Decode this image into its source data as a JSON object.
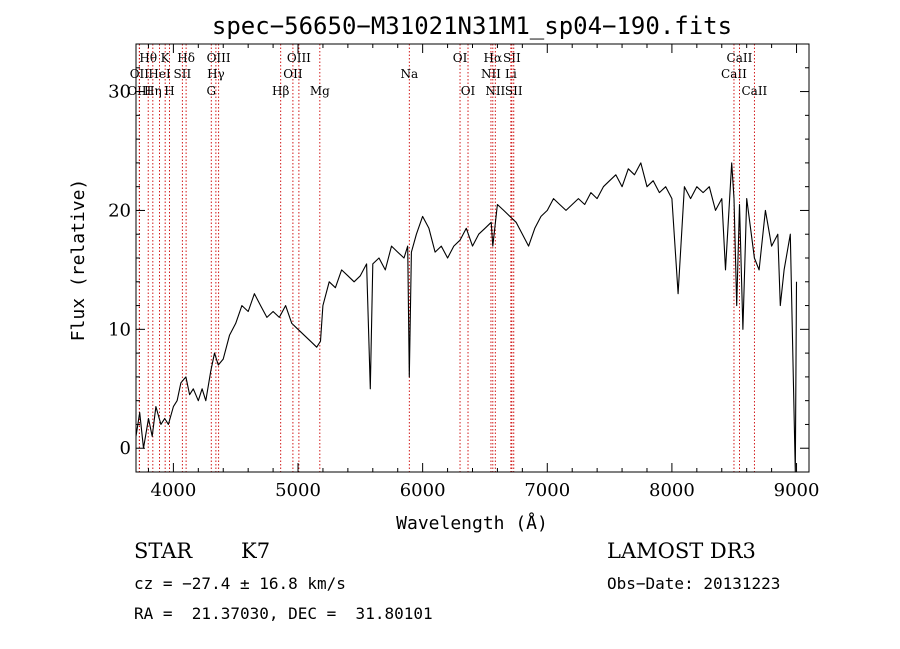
{
  "chart_data": {
    "type": "line",
    "title": "spec−56650−M31021N31M1_sp04−190.fits",
    "xlabel": "Wavelength (Å)",
    "ylabel": "Flux (relative)",
    "xlim": [
      3700,
      9100
    ],
    "ylim": [
      -2,
      34
    ],
    "xticks": [
      4000,
      5000,
      6000,
      7000,
      8000,
      9000
    ],
    "yticks": [
      0,
      10,
      20,
      30
    ],
    "grid": false,
    "line_color": "#000000",
    "marker_color": "#cc0000",
    "series": [
      {
        "x": [
          3700,
          3730,
          3760,
          3800,
          3830,
          3860,
          3900,
          3930,
          3960,
          4000,
          4030,
          4060,
          4100,
          4130,
          4160,
          4200,
          4230,
          4260,
          4300,
          4330,
          4360,
          4400,
          4450,
          4500,
          4550,
          4600,
          4650,
          4700,
          4750,
          4800,
          4850,
          4900,
          4950,
          5000,
          5050,
          5100,
          5150,
          5180,
          5200,
          5250,
          5300,
          5350,
          5400,
          5450,
          5500,
          5550,
          5580,
          5600,
          5650,
          5700,
          5750,
          5800,
          5850,
          5880,
          5893,
          5910,
          5950,
          6000,
          6050,
          6100,
          6150,
          6200,
          6250,
          6300,
          6350,
          6400,
          6450,
          6500,
          6550,
          6563,
          6600,
          6650,
          6700,
          6750,
          6800,
          6850,
          6900,
          6950,
          7000,
          7050,
          7100,
          7150,
          7200,
          7250,
          7300,
          7350,
          7400,
          7450,
          7500,
          7550,
          7600,
          7650,
          7700,
          7750,
          7800,
          7850,
          7900,
          7950,
          8000,
          8050,
          8100,
          8150,
          8200,
          8250,
          8300,
          8350,
          8400,
          8430,
          8480,
          8498,
          8520,
          8542,
          8570,
          8600,
          8662,
          8700,
          8750,
          8800,
          8850,
          8870,
          8900,
          8950,
          8990,
          9000
        ],
        "y": [
          1.0,
          3.0,
          0.0,
          2.5,
          1.0,
          3.5,
          2.0,
          2.5,
          2.0,
          3.5,
          4.0,
          5.5,
          6.0,
          4.5,
          5.0,
          4.0,
          5.0,
          4.0,
          6.5,
          8.0,
          7.0,
          7.5,
          9.5,
          10.5,
          12.0,
          11.5,
          13.0,
          12.0,
          11.0,
          11.5,
          11.0,
          12.0,
          10.5,
          10.0,
          9.5,
          9.0,
          8.5,
          9.0,
          12.0,
          14.0,
          13.5,
          15.0,
          14.5,
          14.0,
          14.5,
          15.5,
          5.0,
          15.5,
          16.0,
          15.0,
          17.0,
          16.5,
          16.0,
          17.0,
          6.0,
          16.5,
          18.0,
          19.5,
          18.5,
          16.5,
          17.0,
          16.0,
          17.0,
          17.5,
          18.5,
          17.0,
          18.0,
          18.5,
          19.0,
          17.0,
          20.5,
          20.0,
          19.5,
          19.0,
          18.0,
          17.0,
          18.5,
          19.5,
          20.0,
          21.0,
          20.5,
          20.0,
          20.5,
          21.0,
          20.5,
          21.5,
          21.0,
          22.0,
          22.5,
          23.0,
          22.0,
          23.5,
          23.0,
          24.0,
          22.0,
          22.5,
          21.5,
          22.0,
          21.0,
          13.0,
          22.0,
          21.0,
          22.0,
          21.5,
          22.0,
          20.0,
          21.0,
          15.0,
          24.0,
          21.0,
          12.0,
          20.5,
          10.0,
          21.0,
          16.0,
          15.0,
          20.0,
          17.0,
          18.0,
          12.0,
          15.0,
          18.0,
          -2.0,
          14.0
        ]
      }
    ],
    "line_markers": [
      {
        "name": "OIII",
        "x": 3727,
        "row": 2
      },
      {
        "name": "OII",
        "x": 3727,
        "row": 1
      },
      {
        "name": "Hθ",
        "x": 3798,
        "row": 0
      },
      {
        "name": "Hη",
        "x": 3835,
        "row": 2
      },
      {
        "name": "HeI",
        "x": 3889,
        "row": 1
      },
      {
        "name": "K",
        "x": 3934,
        "row": 0
      },
      {
        "name": "H",
        "x": 3969,
        "row": 2
      },
      {
        "name": "SII",
        "x": 4072,
        "row": 1
      },
      {
        "name": "Hδ",
        "x": 4102,
        "row": 0
      },
      {
        "name": "G",
        "x": 4304,
        "row": 2
      },
      {
        "name": "Hγ",
        "x": 4341,
        "row": 1
      },
      {
        "name": "OIII",
        "x": 4363,
        "row": 0
      },
      {
        "name": "Hβ",
        "x": 4861,
        "row": 2
      },
      {
        "name": "OII",
        "x": 4959,
        "row": 1
      },
      {
        "name": "OIII",
        "x": 5007,
        "row": 0
      },
      {
        "name": "Mg",
        "x": 5175,
        "row": 2
      },
      {
        "name": "Na",
        "x": 5893,
        "row": 1
      },
      {
        "name": "OI",
        "x": 6300,
        "row": 0
      },
      {
        "name": "OI",
        "x": 6364,
        "row": 2
      },
      {
        "name": "NII",
        "x": 6548,
        "row": 1
      },
      {
        "name": "Hα",
        "x": 6563,
        "row": 0
      },
      {
        "name": "NII",
        "x": 6583,
        "row": 2
      },
      {
        "name": "Li",
        "x": 6708,
        "row": 1
      },
      {
        "name": "SII",
        "x": 6716,
        "row": 0
      },
      {
        "name": "SII",
        "x": 6731,
        "row": 2
      },
      {
        "name": "CaII",
        "x": 8498,
        "row": 1
      },
      {
        "name": "CaII",
        "x": 8542,
        "row": 0
      },
      {
        "name": "CaII",
        "x": 8662,
        "row": 2
      }
    ]
  },
  "info": {
    "object_type": "STAR",
    "subclass": "K7",
    "survey": "LAMOST DR3",
    "redshift_line": "cz = −27.4 ± 16.8 km/s",
    "obs_date_line": "Obs−Date: 20131223",
    "coords_line": "RA =  21.37030, DEC =  31.80101"
  }
}
